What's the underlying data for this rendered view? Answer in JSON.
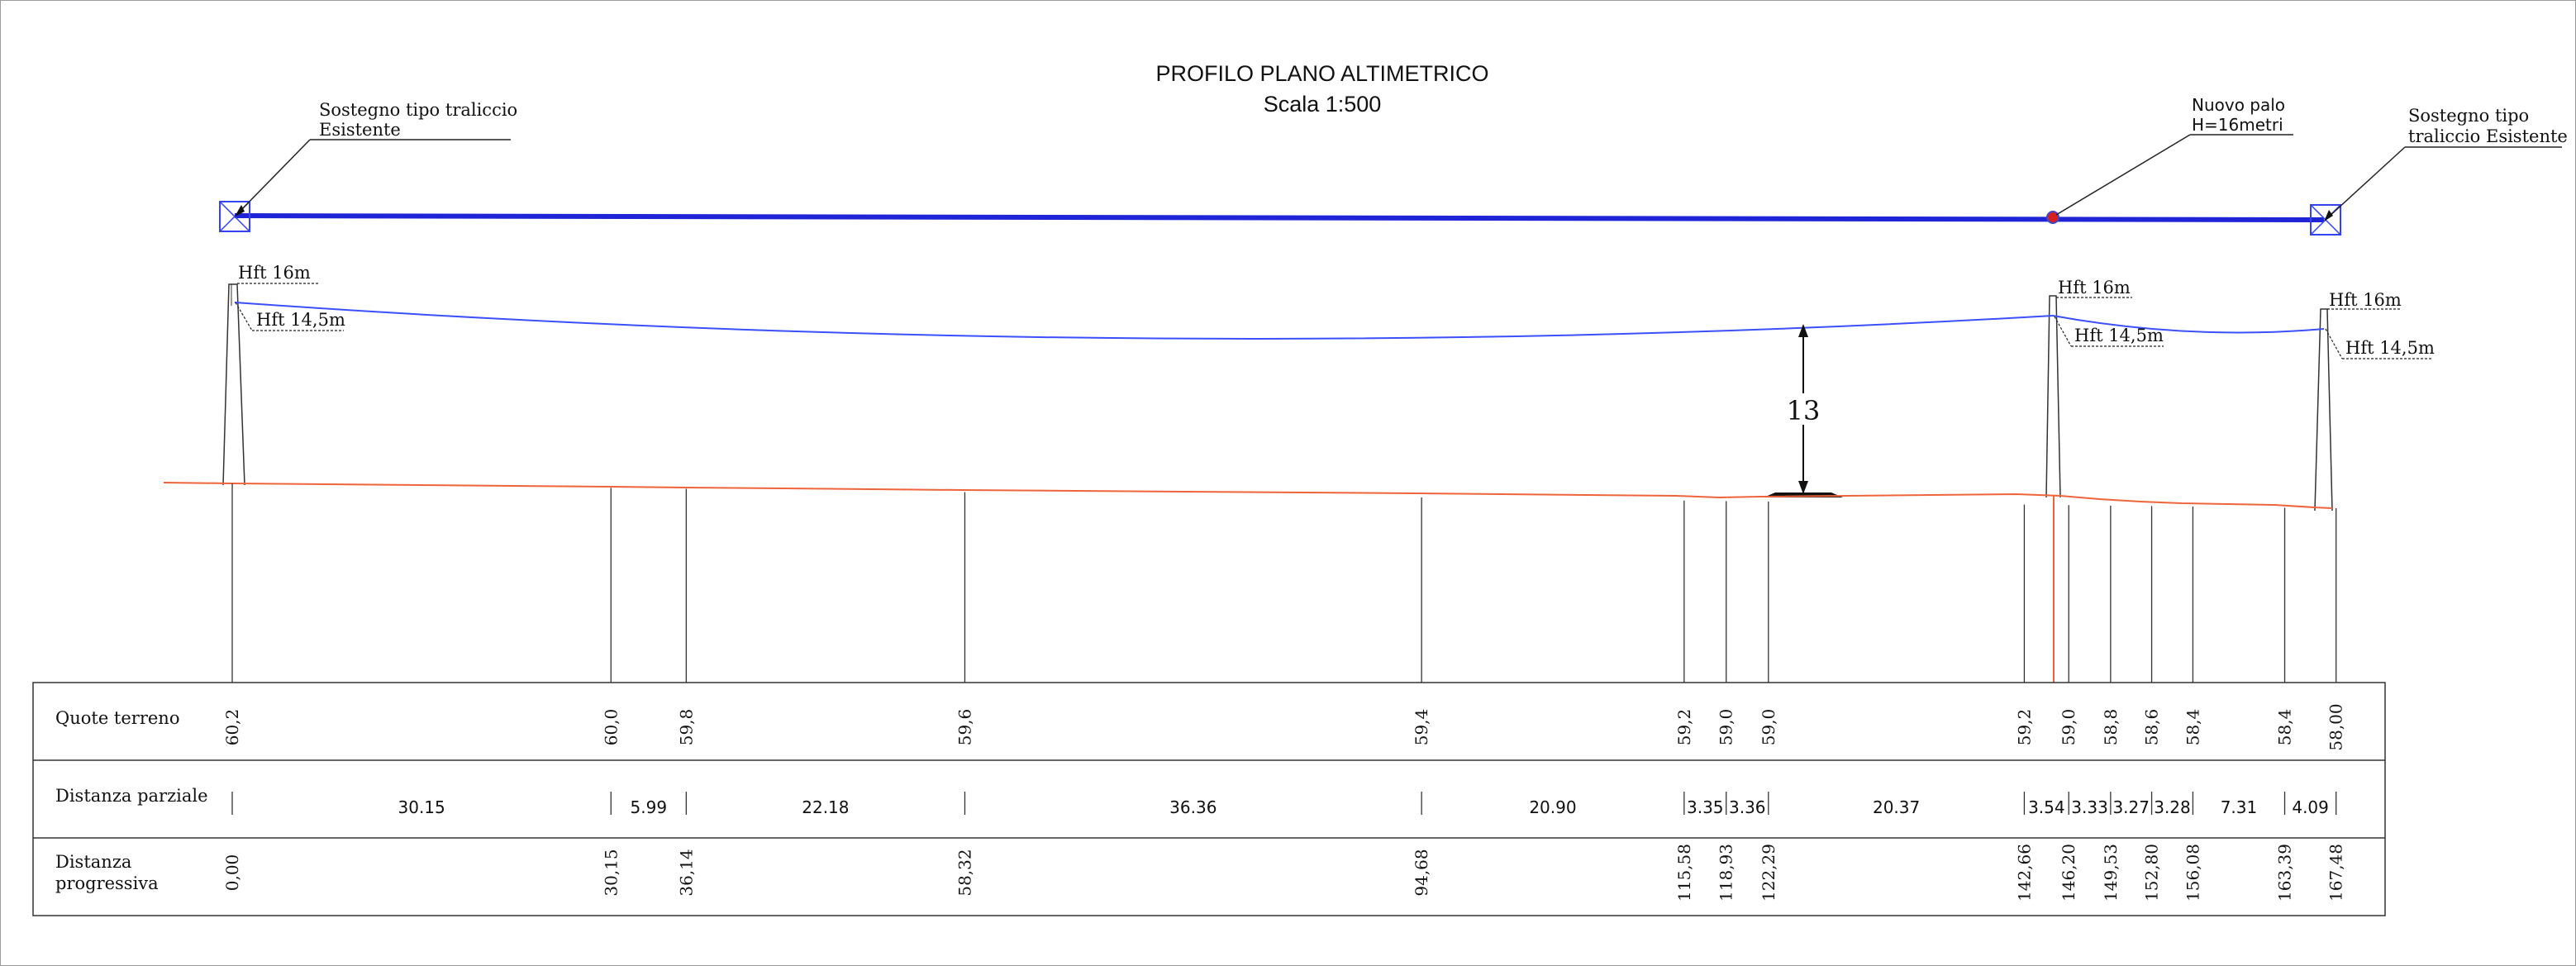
{
  "title": "PROFILO PLANO ALTIMETRICO",
  "subtitle": "Scala 1:500",
  "supports": {
    "left_label_1": "Sostegno tipo traliccio",
    "left_label_2": "Esistente",
    "new_pole_label_1": "Nuovo palo",
    "new_pole_label_2": "H=16metri",
    "right_label_1": "Sostegno tipo",
    "right_label_2": "traliccio Esistente"
  },
  "heights": {
    "left_total": "Hft 16m",
    "left_cond": "Hft 14,5m",
    "mid_total": "Hft 16m",
    "mid_cond": "Hft 14,5m",
    "right_total": "Hft 16m",
    "right_cond": "Hft 14,5m"
  },
  "clearance": "13",
  "table": {
    "row1": "Quote terreno",
    "row2": "Distanza parziale",
    "row3_1": "Distanza",
    "row3_2": "progressiva"
  },
  "stations": [
    {
      "quota": "60,2",
      "progressiva": "0,00"
    },
    {
      "quota": "60,0",
      "progressiva": "30,15"
    },
    {
      "quota": "59,8",
      "progressiva": "36,14"
    },
    {
      "quota": "59,6",
      "progressiva": "58,32"
    },
    {
      "quota": "59,4",
      "progressiva": "94,68"
    },
    {
      "quota": "59,2",
      "progressiva": "115,58"
    },
    {
      "quota": "59,0",
      "progressiva": "118,93"
    },
    {
      "quota": "59,0",
      "progressiva": "122,29"
    },
    {
      "quota": "59,2",
      "progressiva": "142,66"
    },
    {
      "quota": "59,0",
      "progressiva": "146,20"
    },
    {
      "quota": "58,8",
      "progressiva": "149,53"
    },
    {
      "quota": "58,6",
      "progressiva": "152,80"
    },
    {
      "quota": "58,4",
      "progressiva": "156,08"
    },
    {
      "quota": "58,4",
      "progressiva": "163,39"
    },
    {
      "quota": "58,00",
      "progressiva": "167,48"
    }
  ],
  "partials": [
    "30.15",
    "5.99",
    "22.18",
    "36.36",
    "20.90",
    "3.35",
    "3.36",
    "20.37",
    "3.54",
    "3.33",
    "3.27",
    "3.28",
    "7.31",
    "4.09"
  ],
  "colors": {
    "conductor": "#1f25d6",
    "catenary": "#3a50ff",
    "ground": "#f0643c",
    "pole_marker": "#d42020"
  }
}
